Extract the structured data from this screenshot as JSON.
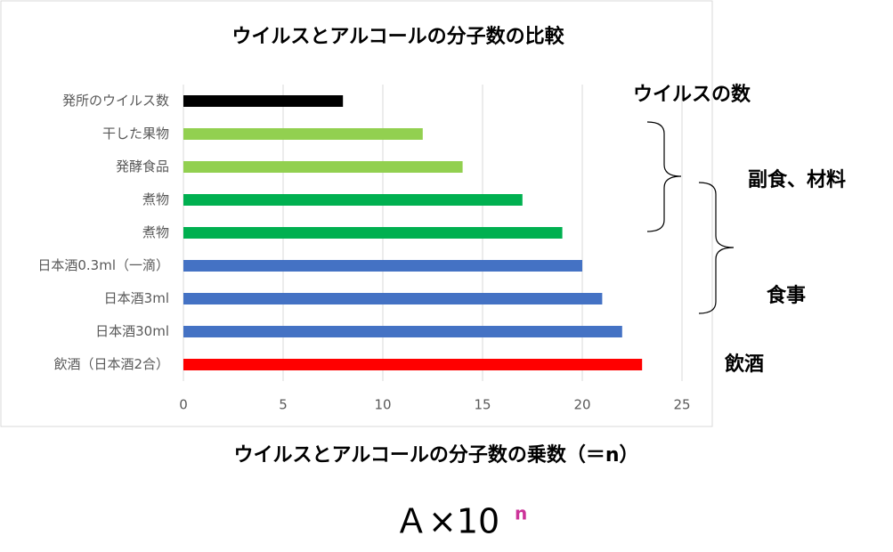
{
  "chart_data": {
    "type": "barh",
    "title": "ウイルスとアルコールの分子数の比較",
    "x_label": "ウイルスとアルコールの分子数の乗数（＝n）",
    "categories": [
      "発所のウイルス数",
      "干した果物",
      "発酵食品",
      "煮物",
      "煮物",
      "日本酒0.3ml（一滴）",
      "日本酒3ml",
      "日本酒30ml",
      "飲酒（日本酒2合）"
    ],
    "values": [
      8,
      12,
      14,
      17,
      19,
      20,
      21,
      22,
      23
    ],
    "colors": [
      "#000000",
      "#92d050",
      "#92d050",
      "#00b050",
      "#00b050",
      "#4472c4",
      "#4472c4",
      "#4472c4",
      "#ff0000"
    ],
    "xlim": [
      0,
      25
    ],
    "xticks": [
      0,
      5,
      10,
      15,
      20,
      25
    ],
    "grid": true,
    "annotations": [
      "ウイルスの数",
      "副食、材料",
      "食事",
      "飲酒"
    ],
    "formula": {
      "base": "Ａ×10",
      "exponent": "n"
    }
  }
}
